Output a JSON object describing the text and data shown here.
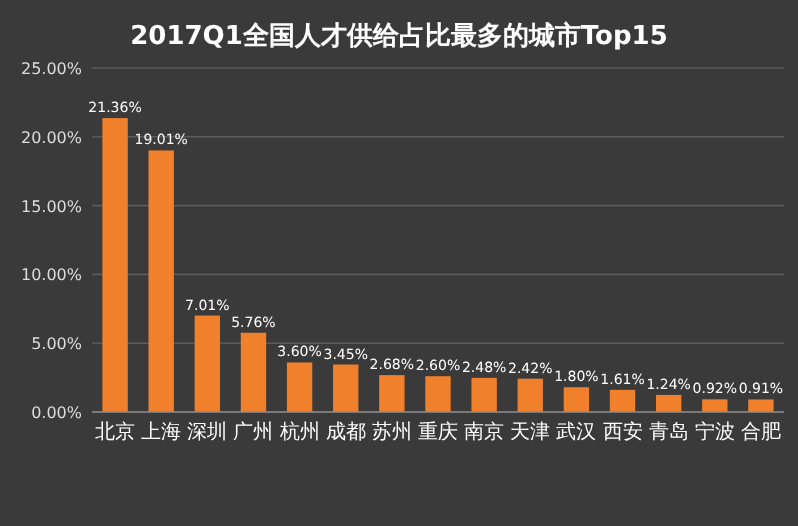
{
  "chart_data": {
    "type": "bar",
    "title": "2017Q1全国人才供给占比最多的城市Top15",
    "categories": [
      "北京",
      "上海",
      "深圳",
      "广州",
      "杭州",
      "成都",
      "苏州",
      "重庆",
      "南京",
      "天津",
      "武汉",
      "西安",
      "青岛",
      "宁波",
      "合肥"
    ],
    "values": [
      21.36,
      19.01,
      7.01,
      5.76,
      3.6,
      3.45,
      2.68,
      2.6,
      2.48,
      2.42,
      1.8,
      1.61,
      1.24,
      0.92,
      0.91
    ],
    "value_labels": [
      "21.36%",
      "19.01%",
      "7.01%",
      "5.76%",
      "3.60%",
      "3.45%",
      "2.68%",
      "2.60%",
      "2.48%",
      "2.42%",
      "1.80%",
      "1.61%",
      "1.24%",
      "0.92%",
      "0.91%"
    ],
    "color": "#f0802c",
    "ylim": [
      0,
      25
    ],
    "yticks": [
      {
        "value": 0,
        "label": "0.00%"
      },
      {
        "value": 5,
        "label": "5.00%"
      },
      {
        "value": 10,
        "label": "10.00%"
      },
      {
        "value": 15,
        "label": "15.00%"
      },
      {
        "value": 20,
        "label": "20.00%"
      },
      {
        "value": 25,
        "label": "25.00%"
      }
    ],
    "grid": "y"
  }
}
